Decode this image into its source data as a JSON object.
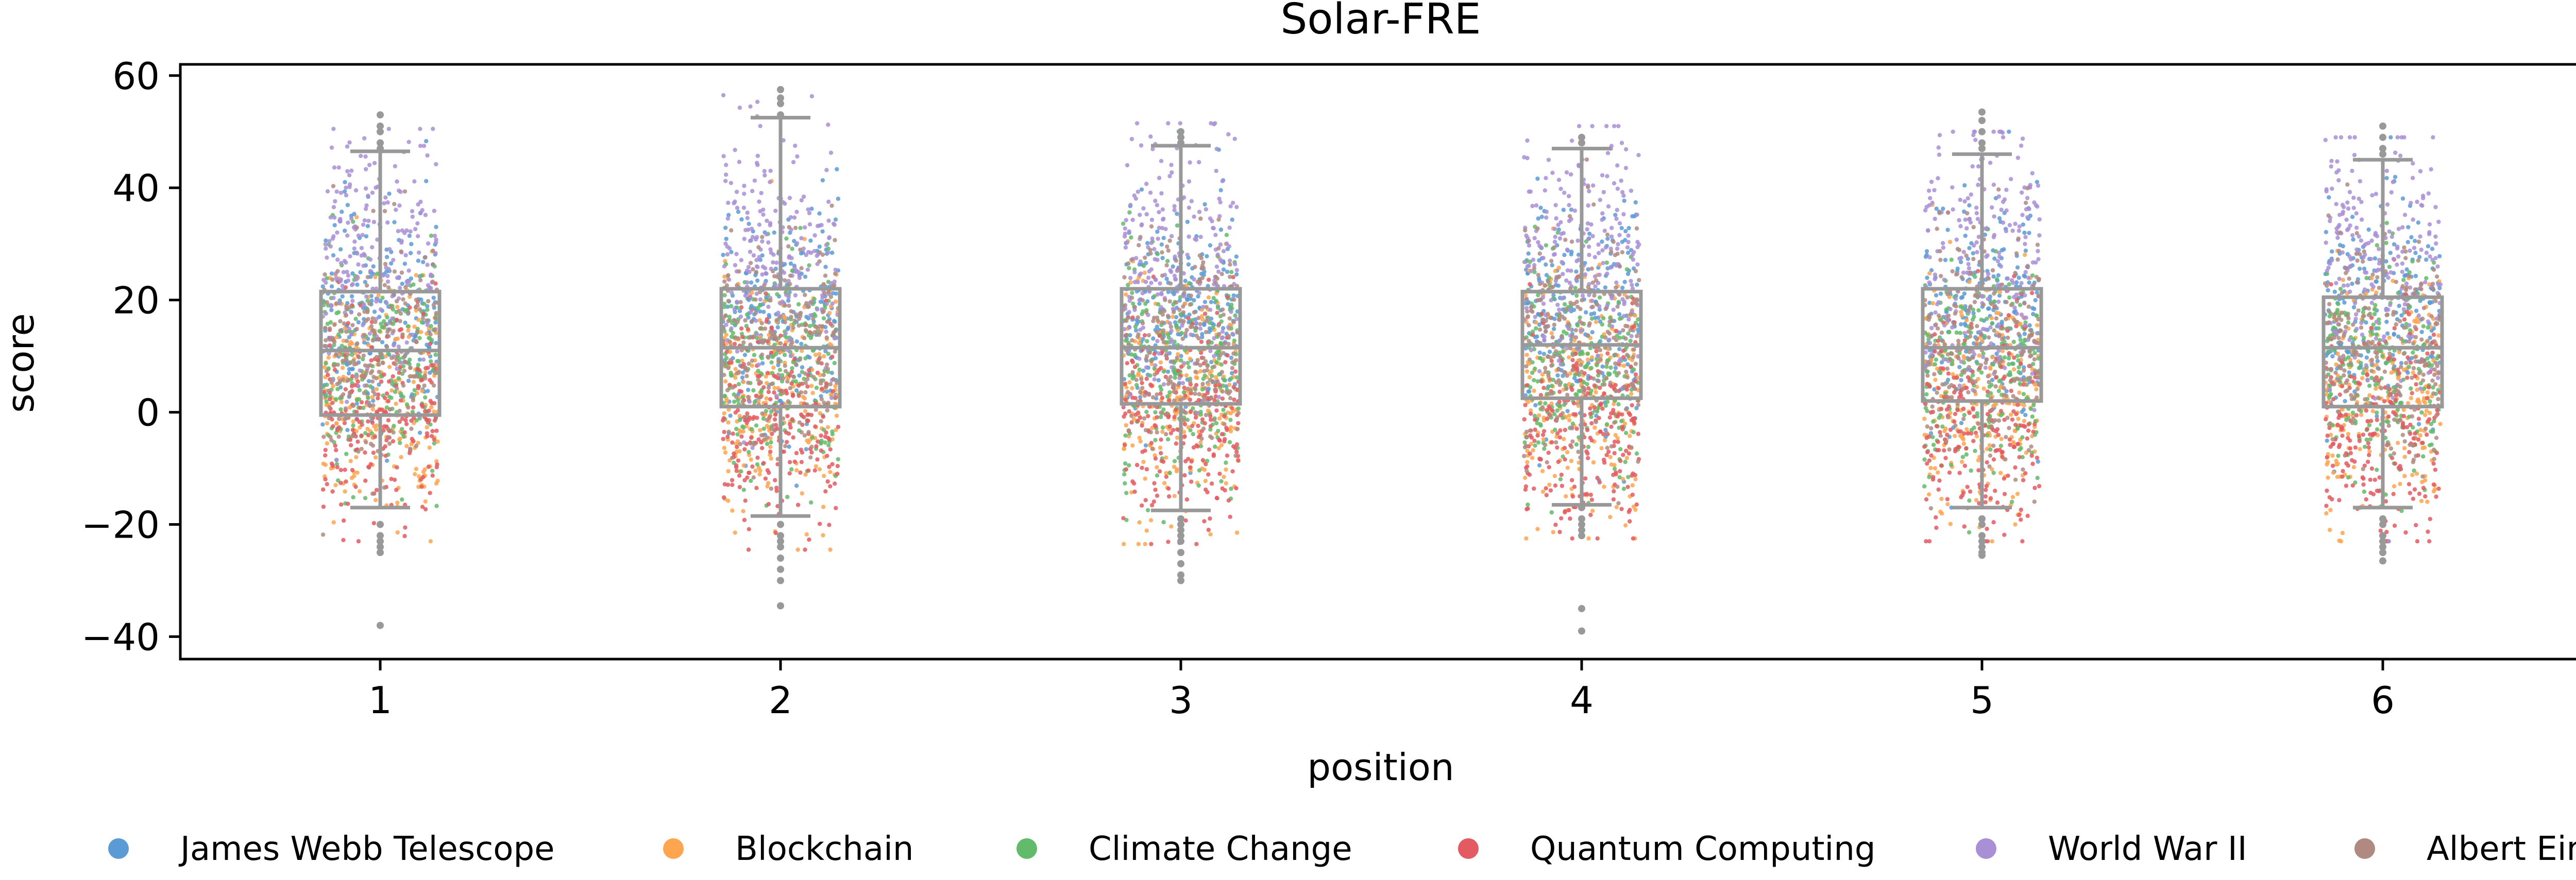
{
  "chart_data": {
    "type": "box+strip",
    "title": "Solar-FRE",
    "xlabel": "position",
    "ylabel": "score",
    "ylim": [
      -44,
      62
    ],
    "yticks": [
      60,
      40,
      20,
      0,
      -20,
      -40
    ],
    "ytick_labels": [
      "60",
      "40",
      "20",
      "0",
      "−20",
      "−40"
    ],
    "categories": [
      "1",
      "2",
      "3",
      "4",
      "5",
      "6"
    ],
    "box_color": "#999999",
    "boxes": [
      {
        "position": "1",
        "q1": -0.5,
        "median": 11,
        "q3": 21.5,
        "whisker_low": -17,
        "whisker_high": 46.5,
        "outliers": [
          -20,
          -22,
          -23,
          -24,
          -25,
          -38,
          47,
          48,
          50,
          51,
          53
        ]
      },
      {
        "position": "2",
        "q1": 1,
        "median": 11.5,
        "q3": 22,
        "whisker_low": -18.5,
        "whisker_high": 52.5,
        "outliers": [
          -20,
          -22,
          -23,
          -24,
          -26,
          -28,
          -30,
          -34.5,
          53,
          55,
          56,
          57.5
        ]
      },
      {
        "position": "3",
        "q1": 1.5,
        "median": 11.5,
        "q3": 22,
        "whisker_low": -17.5,
        "whisker_high": 47.5,
        "outliers": [
          -19,
          -20,
          -21,
          -22,
          -23,
          -25,
          -27,
          -29,
          -30,
          48,
          49,
          50
        ]
      },
      {
        "position": "4",
        "q1": 2.5,
        "median": 12,
        "q3": 21.5,
        "whisker_low": -16.5,
        "whisker_high": 47,
        "outliers": [
          -17,
          -19,
          -20,
          -21,
          -22,
          -35,
          -39,
          48,
          49
        ]
      },
      {
        "position": "5",
        "q1": 2,
        "median": 11.5,
        "q3": 22,
        "whisker_low": -17,
        "whisker_high": 46,
        "outliers": [
          -19,
          -20,
          -22,
          -23,
          -24,
          -25,
          -25.5,
          47,
          48,
          50,
          52,
          53.5
        ]
      },
      {
        "position": "6",
        "q1": 1,
        "median": 11.5,
        "q3": 20.5,
        "whisker_low": -17,
        "whisker_high": 45,
        "outliers": [
          -19,
          -20,
          -22,
          -23,
          -24,
          -25,
          -26.5,
          46,
          47,
          49,
          51
        ]
      }
    ],
    "series": [
      {
        "name": "James Webb Telescope",
        "color": "#5b9bd5",
        "center": 17,
        "spread": 10
      },
      {
        "name": "Blockchain",
        "color": "#ffa54f",
        "center": 2,
        "spread": 11
      },
      {
        "name": "Climate Change",
        "color": "#62bb6a",
        "center": 8,
        "spread": 10
      },
      {
        "name": "Quantum Computing",
        "color": "#e35a60",
        "center": -2,
        "spread": 10
      },
      {
        "name": "World War II",
        "color": "#a98fd6",
        "center": 28,
        "spread": 11
      },
      {
        "name": "Albert Einstein",
        "color": "#b08a80",
        "center": 12,
        "spread": 10
      }
    ],
    "points_per_series_per_position": 220,
    "legend_placement": "bottom",
    "grid": false
  }
}
